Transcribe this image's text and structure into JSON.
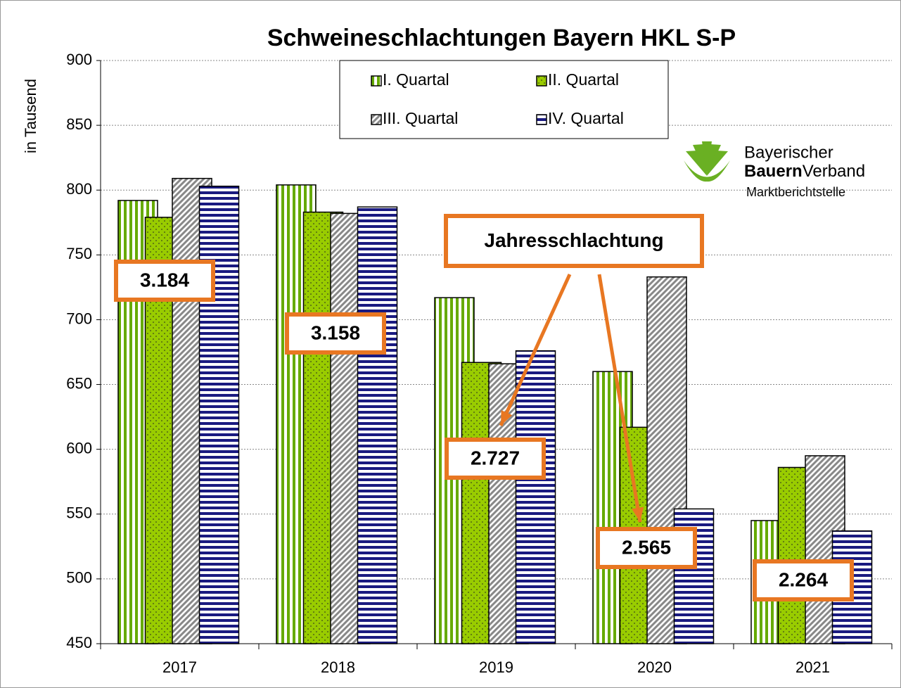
{
  "chart_data": {
    "type": "bar",
    "title": "Schweineschlachtungen Bayern HKL S-P",
    "y_label": "in Tausend",
    "categories": [
      "2017",
      "2018",
      "2019",
      "2020",
      "2021"
    ],
    "series": [
      {
        "name": "I. Quartal",
        "color": "#66aa00",
        "pattern": "vertical",
        "values": [
          792,
          804,
          717,
          660,
          545
        ]
      },
      {
        "name": "II. Quartal",
        "color": "#99cc00",
        "pattern": "dots",
        "values": [
          779,
          783,
          667,
          617,
          586
        ]
      },
      {
        "name": "III. Quartal",
        "color": "#888888",
        "pattern": "diagonal",
        "values": [
          809,
          782,
          666,
          733,
          595
        ]
      },
      {
        "name": "IV. Quartal",
        "color": "#1a1a80",
        "pattern": "horizontal",
        "values": [
          803,
          787,
          676,
          554,
          537
        ]
      }
    ],
    "ylim": [
      450,
      900
    ],
    "yticks": [
      450,
      500,
      550,
      600,
      650,
      700,
      750,
      800,
      850,
      900
    ],
    "grid": true,
    "annual_totals": [
      "3.184",
      "3.158",
      "2.727",
      "2.565",
      "2.264"
    ],
    "annotation": "Jahresschlachtung",
    "logo": {
      "line1": "Bayerischer",
      "line2a": "Bauern",
      "line2b": "Verband",
      "line3": "Marktberichtstelle"
    }
  }
}
